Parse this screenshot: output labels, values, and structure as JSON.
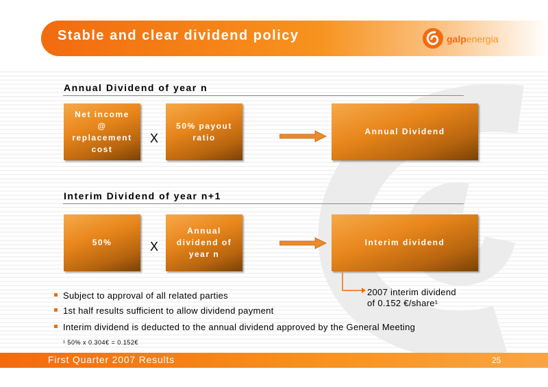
{
  "header": {
    "title": "Stable and clear dividend policy"
  },
  "logo": {
    "brand_bold": "galp",
    "brand_thin": "energia"
  },
  "annual": {
    "heading": "Annual Dividend of year n",
    "box1_lines": [
      "Net income",
      "@",
      "replacement",
      "cost"
    ],
    "times": "X",
    "box2_lines": [
      "50% payout",
      "ratio"
    ],
    "result": "Annual Dividend"
  },
  "interim": {
    "heading": "Interim Dividend of year n+1",
    "box1": "50%",
    "times": "X",
    "box2_lines": [
      "Annual",
      "dividend of",
      "year n"
    ],
    "result": "Interim dividend"
  },
  "bullets": [
    "Subject to approval of all related parties",
    "1st half results sufficient to allow dividend payment",
    "Interim dividend is deducted to the annual dividend approved by the General Meeting"
  ],
  "note": {
    "line1": "2007 interim dividend",
    "line2": "of 0.152 €/share¹"
  },
  "footnote": "¹ 50% x 0.304€ = 0.152€",
  "footer": {
    "text": "First Quarter 2007 Results",
    "page": "25"
  },
  "colors": {
    "accent": "#f26b0f",
    "accent_light": "#f7931e",
    "box_dark": "#7a4205"
  }
}
